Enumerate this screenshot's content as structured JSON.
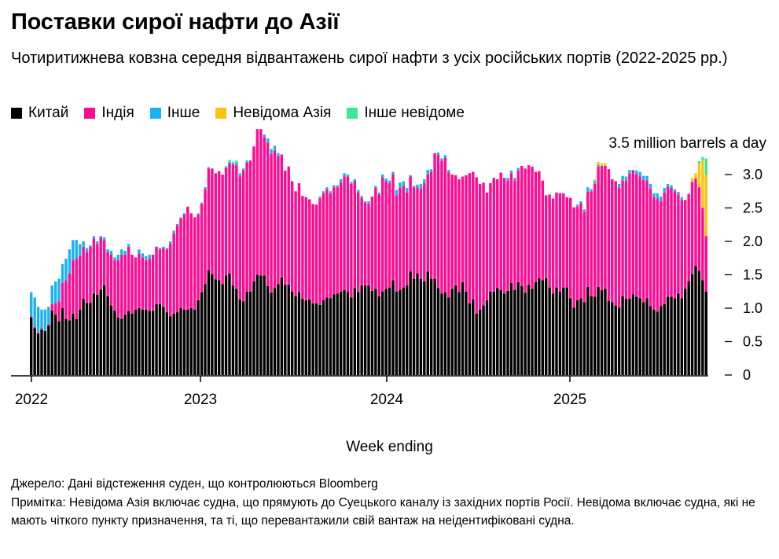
{
  "title": "Поставки сирої нафти до Азії",
  "subtitle": "Чотиритижнева ковзна середня відвантажень сирої нафти з усіх російських портів (2022-2025 рр.)",
  "footer": {
    "source": "Джерело: Дані відстеження суден, що контролюються Bloomberg",
    "note": "Примітка: Невідома Азія включає судна, що прямують до Суецького каналу із західних портів Росії. Невідома включає судна, які не мають чіткого пункту призначення, та ті, що перевантажили свій вантаж на неідентифіковані судна."
  },
  "chart_data": {
    "type": "bar",
    "stacked": true,
    "title": "Поставки сирої нафти до Азії",
    "xlabel": "Week ending",
    "ylabel": "3.5 million barrels a day",
    "ylim": [
      0,
      3.5
    ],
    "y_ticks": [
      "0",
      "0.5",
      "1.0",
      "1.5",
      "2.0",
      "2.5",
      "3.0"
    ],
    "x_ticks": [
      "2022",
      "2023",
      "2024",
      "2025"
    ],
    "y_axis_side": "right",
    "grid": false,
    "legend_position": "top-left",
    "series": [
      {
        "name": "Китай",
        "color": "#000000",
        "values": [
          0.86,
          0.7,
          0.62,
          0.68,
          0.66,
          0.74,
          0.96,
          0.9,
          0.8,
          1.0,
          0.84,
          0.82,
          0.92,
          0.84,
          0.98,
          1.14,
          1.08,
          1.08,
          1.22,
          1.2,
          1.28,
          1.34,
          1.18,
          1.04,
          0.96,
          0.86,
          0.84,
          0.9,
          0.96,
          0.92,
          0.98,
          1.0,
          0.98,
          0.98,
          0.96,
          0.96,
          1.06,
          1.06,
          1.02,
          0.94,
          0.88,
          0.92,
          0.94,
          1.0,
          0.98,
          0.98,
          1.0,
          0.98,
          1.12,
          1.24,
          1.36,
          1.57,
          1.51,
          1.43,
          1.42,
          1.36,
          1.49,
          1.52,
          1.34,
          1.29,
          1.13,
          1.1,
          1.25,
          1.25,
          1.4,
          1.5,
          1.49,
          1.49,
          1.33,
          1.23,
          1.3,
          1.36,
          1.46,
          1.35,
          1.35,
          1.25,
          1.18,
          1.24,
          1.14,
          1.12,
          1.13,
          1.07,
          1.07,
          1.05,
          1.12,
          1.16,
          1.15,
          1.21,
          1.22,
          1.25,
          1.27,
          1.24,
          1.16,
          1.3,
          1.24,
          1.34,
          1.34,
          1.34,
          1.26,
          1.29,
          1.18,
          1.25,
          1.29,
          1.31,
          1.42,
          1.25,
          1.27,
          1.31,
          1.34,
          1.55,
          1.44,
          1.52,
          1.44,
          1.4,
          1.55,
          1.44,
          1.44,
          1.3,
          1.22,
          1.24,
          1.16,
          1.29,
          1.34,
          1.24,
          1.39,
          1.25,
          1.07,
          1.13,
          0.92,
          0.98,
          1.04,
          1.12,
          1.25,
          1.25,
          1.3,
          1.27,
          1.22,
          1.26,
          1.38,
          1.27,
          1.39,
          1.33,
          1.23,
          1.35,
          1.29,
          1.39,
          1.45,
          1.42,
          1.45,
          1.31,
          1.22,
          1.31,
          1.25,
          1.31,
          1.31,
          1.15,
          1.01,
          1.12,
          1.15,
          1.09,
          1.32,
          1.18,
          1.17,
          1.32,
          1.27,
          1.29,
          1.11,
          1.09,
          1.04,
          1.01,
          1.18,
          1.14,
          1.14,
          1.21,
          1.17,
          1.15,
          1.09,
          1.15,
          1.03,
          0.98,
          0.95,
          1.03,
          1.06,
          1.17,
          1.17,
          1.15,
          1.22,
          1.15,
          1.29,
          1.4,
          1.51,
          1.63,
          1.56,
          1.42,
          1.25
        ]
      },
      {
        "name": "Індія",
        "color": "#FF0A91",
        "values": [
          0.02,
          0.02,
          0.02,
          0.02,
          0,
          0.02,
          0.1,
          0.18,
          0.3,
          0.38,
          0.58,
          0.7,
          0.8,
          0.9,
          0.8,
          0.78,
          0.76,
          0.84,
          0.82,
          0.76,
          0.78,
          0.68,
          0.66,
          0.76,
          0.76,
          0.86,
          0.96,
          0.9,
          0.96,
          0.88,
          0.78,
          0.82,
          0.78,
          0.74,
          0.78,
          0.84,
          0.86,
          0.82,
          0.88,
          0.94,
          1.08,
          1.2,
          1.3,
          1.34,
          1.42,
          1.54,
          1.42,
          1.38,
          1.28,
          1.32,
          1.42,
          1.52,
          1.58,
          1.59,
          1.63,
          1.64,
          1.61,
          1.65,
          1.81,
          1.85,
          1.84,
          1.96,
          1.93,
          1.96,
          2.02,
          2.18,
          2.19,
          2.07,
          2.15,
          2.08,
          2.06,
          1.92,
          1.84,
          1.71,
          1.77,
          1.65,
          1.57,
          1.63,
          1.54,
          1.54,
          1.5,
          1.49,
          1.48,
          1.59,
          1.6,
          1.62,
          1.57,
          1.6,
          1.59,
          1.63,
          1.7,
          1.73,
          1.7,
          1.6,
          1.49,
          1.31,
          1.24,
          1.22,
          1.41,
          1.51,
          1.52,
          1.71,
          1.61,
          1.56,
          1.58,
          1.44,
          1.53,
          1.52,
          1.39,
          1.42,
          1.37,
          1.29,
          1.35,
          1.47,
          1.45,
          1.6,
          1.88,
          1.99,
          1.98,
          2.01,
          1.87,
          1.71,
          1.65,
          1.69,
          1.58,
          1.74,
          1.95,
          1.91,
          2.04,
          1.88,
          1.84,
          1.61,
          1.62,
          1.7,
          1.63,
          1.76,
          1.73,
          1.65,
          1.64,
          1.64,
          1.67,
          1.8,
          1.86,
          1.79,
          1.83,
          1.65,
          1.6,
          1.49,
          1.24,
          1.39,
          1.42,
          1.42,
          1.47,
          1.41,
          1.35,
          1.5,
          1.5,
          1.4,
          1.42,
          1.35,
          1.42,
          1.57,
          1.69,
          1.8,
          1.86,
          1.84,
          1.97,
          1.84,
          1.86,
          1.79,
          1.73,
          1.77,
          1.88,
          1.85,
          1.84,
          1.82,
          1.83,
          1.76,
          1.76,
          1.68,
          1.69,
          1.57,
          1.67,
          1.65,
          1.63,
          1.6,
          1.48,
          1.47,
          1.33,
          1.31,
          1.38,
          1.31,
          1.25,
          1.08,
          0.83
        ]
      },
      {
        "name": "Інше",
        "color": "#1AB2F0",
        "values": [
          0.36,
          0.44,
          0.38,
          0.28,
          0.32,
          0.26,
          0.28,
          0.32,
          0.34,
          0.28,
          0.32,
          0.36,
          0.3,
          0.28,
          0.18,
          0.08,
          0.06,
          0.02,
          0.04,
          0.04,
          0.02,
          0.04,
          0.04,
          0.06,
          0.04,
          0.08,
          0.08,
          0.06,
          0.04,
          0,
          0,
          0.06,
          0.06,
          0.06,
          0.06,
          0,
          0,
          0.02,
          0.02,
          0.02,
          0.04,
          0.04,
          0.02,
          0.02,
          0.02,
          0,
          0,
          0,
          0.02,
          0.02,
          0.03,
          0.02,
          0,
          0,
          0,
          0,
          0,
          0.02,
          0.02,
          0.04,
          0.05,
          0.03,
          0.03,
          0,
          0,
          0,
          0,
          0.04,
          0.06,
          0.07,
          0.07,
          0.04,
          0,
          0,
          0,
          0,
          0,
          0,
          0,
          0,
          0,
          0,
          0,
          0.03,
          0.03,
          0.03,
          0.03,
          0.03,
          0.03,
          0.05,
          0.05,
          0.03,
          0.03,
          0.03,
          0.04,
          0.03,
          0.02,
          0.04,
          0,
          0.03,
          0.03,
          0.04,
          0.04,
          0.04,
          0.04,
          0.08,
          0.08,
          0.07,
          0.07,
          0.02,
          0.02,
          0.04,
          0.07,
          0.06,
          0.07,
          0.04,
          0,
          0.04,
          0.04,
          0.04,
          0.04,
          0,
          0,
          0,
          0,
          0,
          0,
          0,
          0,
          0,
          0,
          0,
          0,
          0,
          0,
          0,
          0,
          0.04,
          0.04,
          0.04,
          0.04,
          0,
          0,
          0,
          0,
          0,
          0,
          0,
          0,
          0,
          0,
          0,
          0,
          0,
          0,
          0,
          0,
          0.03,
          0.03,
          0.04,
          0.07,
          0.03,
          0.04,
          0.03,
          0,
          0,
          0,
          0,
          0,
          0.06,
          0.07,
          0.06,
          0.05,
          0.01,
          0.05,
          0.07,
          0.06,
          0.07,
          0.07,
          0.06,
          0.08,
          0.07,
          0.07,
          0.04,
          0.04,
          0.03,
          0.04,
          0.04,
          0,
          0,
          0,
          0,
          0,
          0,
          0
        ]
      },
      {
        "name": "Невідома Азія",
        "color": "#FFC20E",
        "values_by_week": {
          "163": 0.03,
          "164": 0.04,
          "165": 0.04,
          "166": 0.04,
          "191": 0.06,
          "192": 0.08,
          "193": 0.35,
          "194": 0.71,
          "195": 0.92
        }
      },
      {
        "name": "Інше невідоме",
        "color": "#3BE89A",
        "values_by_week": {
          "57": 0.03,
          "58": 0.03,
          "59": 0.02,
          "60": 0.03,
          "193": 0.04,
          "194": 0.05,
          "195": 0.24
        }
      }
    ]
  }
}
